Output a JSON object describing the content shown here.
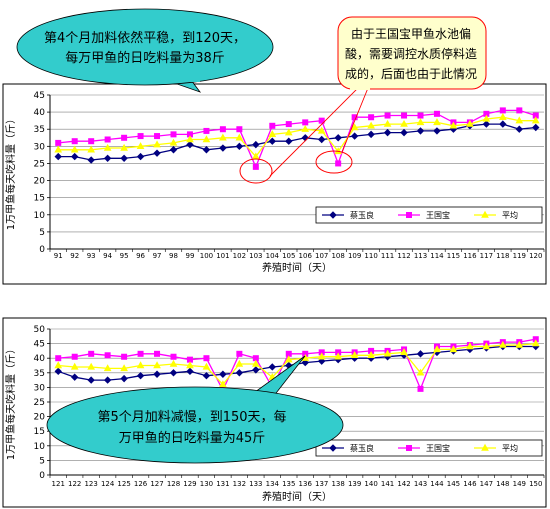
{
  "colors": {
    "series1": "#000080",
    "series2": "#FF00FF",
    "series3": "#FFFF00",
    "callout_fill": "#33CCCC",
    "callout2_fill": "#FFFFCC",
    "callout2_stroke": "#FF0000"
  },
  "chart_data": [
    {
      "type": "line",
      "xlabel": "养殖时间（天）",
      "ylabel": "1万甲鱼每天吃料量（斤）",
      "ylim": [
        0,
        45
      ],
      "yticks": [
        0,
        5,
        10,
        15,
        20,
        25,
        30,
        35,
        40,
        45
      ],
      "grid": true,
      "legend": "bottom-right",
      "x": [
        91,
        92,
        93,
        94,
        95,
        96,
        97,
        98,
        99,
        100,
        101,
        102,
        103,
        104,
        105,
        106,
        107,
        108,
        109,
        110,
        111,
        112,
        113,
        114,
        115,
        116,
        117,
        118,
        119,
        120
      ],
      "series": [
        {
          "name": "蔡玉良",
          "color": "#000080",
          "marker": "diamond",
          "values": [
            27,
            27,
            26,
            26.5,
            26.5,
            27,
            28,
            29,
            30.5,
            29,
            29.5,
            30,
            30.5,
            31.5,
            31.5,
            32.5,
            32,
            32.5,
            33,
            33.5,
            34,
            34,
            34.5,
            34.5,
            35,
            36,
            36.5,
            36.5,
            35,
            35.5
          ]
        },
        {
          "name": "王国宝",
          "color": "#FF00FF",
          "marker": "square",
          "values": [
            31,
            31.5,
            31.5,
            32,
            32.5,
            33,
            33,
            33.5,
            33.5,
            34.5,
            35,
            35,
            24,
            36,
            36.5,
            37,
            37.5,
            25,
            38.5,
            38.5,
            39,
            39,
            39,
            39.5,
            37,
            37,
            39.5,
            40.5,
            40.5,
            39
          ]
        },
        {
          "name": "平均",
          "color": "#FFFF00",
          "marker": "triangle",
          "values": [
            29,
            29,
            29,
            29.5,
            29.5,
            30,
            30.5,
            31,
            32,
            32,
            32.5,
            32.5,
            27,
            33.5,
            34,
            35,
            34.5,
            28.5,
            35.5,
            36,
            36.5,
            36.5,
            37,
            37,
            36,
            36.5,
            38,
            38.5,
            37.5,
            37.5
          ]
        }
      ],
      "annotations": [
        "第4个月加料依然平稳，到120天，每万甲鱼的日吃料量为38斤",
        "由于王国宝甲鱼水池偏酸，需要调控水质停料造成的，后面也由于此情况"
      ]
    },
    {
      "type": "line",
      "xlabel": "养殖时间（天）",
      "ylabel": "1万甲鱼每天吃料量（斤）",
      "ylim": [
        0,
        50
      ],
      "yticks": [
        0,
        5,
        10,
        15,
        20,
        25,
        30,
        35,
        40,
        45,
        50
      ],
      "grid": true,
      "legend": "bottom-right",
      "x": [
        121,
        122,
        123,
        124,
        125,
        126,
        127,
        128,
        129,
        130,
        131,
        132,
        133,
        134,
        135,
        136,
        137,
        138,
        139,
        140,
        141,
        142,
        143,
        144,
        145,
        146,
        147,
        148,
        149,
        150
      ],
      "series": [
        {
          "name": "蔡玉良",
          "color": "#000080",
          "marker": "diamond",
          "values": [
            35.5,
            33.5,
            32.5,
            32.5,
            33,
            34,
            34.5,
            35,
            35.5,
            34,
            34.5,
            35,
            36,
            37,
            37.5,
            38.5,
            39,
            39.5,
            40,
            40,
            40.5,
            41,
            41.5,
            42,
            42.5,
            43,
            43.5,
            44,
            44,
            44
          ]
        },
        {
          "name": "王国宝",
          "color": "#FF00FF",
          "marker": "square",
          "values": [
            40,
            40.5,
            41.5,
            41,
            40.5,
            41.5,
            41.5,
            40.5,
            39.5,
            40,
            29,
            41.5,
            40,
            30,
            41.5,
            41.5,
            42,
            42,
            42,
            42.5,
            42.5,
            43,
            29.5,
            44,
            44,
            44.5,
            45,
            45.5,
            45.5,
            46.5
          ]
        },
        {
          "name": "平均",
          "color": "#FFFF00",
          "marker": "triangle",
          "values": [
            37.5,
            37,
            37,
            36.5,
            36.5,
            37.5,
            37.5,
            38,
            37.5,
            37,
            31,
            38,
            38,
            33.5,
            39.5,
            40,
            40.5,
            40.5,
            41,
            41,
            41.5,
            42,
            35,
            43,
            43,
            44,
            44,
            44.5,
            44.5,
            45
          ]
        }
      ],
      "annotations": [
        "第5个月加料减慢，到150天，每万甲鱼的日吃料量为45斤"
      ]
    }
  ],
  "callouts": {
    "c1_line1": "第4个月加料依然平稳，到120天，",
    "c1_line2": "每万甲鱼的日吃料量为38斤",
    "c2_line1": "由于王国宝甲鱼水池偏",
    "c2_line2": "酸，需要调控水质停料造",
    "c2_line3": "成的，后面也由于此情况",
    "c3_line1": "第5个月加料减慢，到150天，每",
    "c3_line2": "万甲鱼的日吃料量为45斤"
  }
}
